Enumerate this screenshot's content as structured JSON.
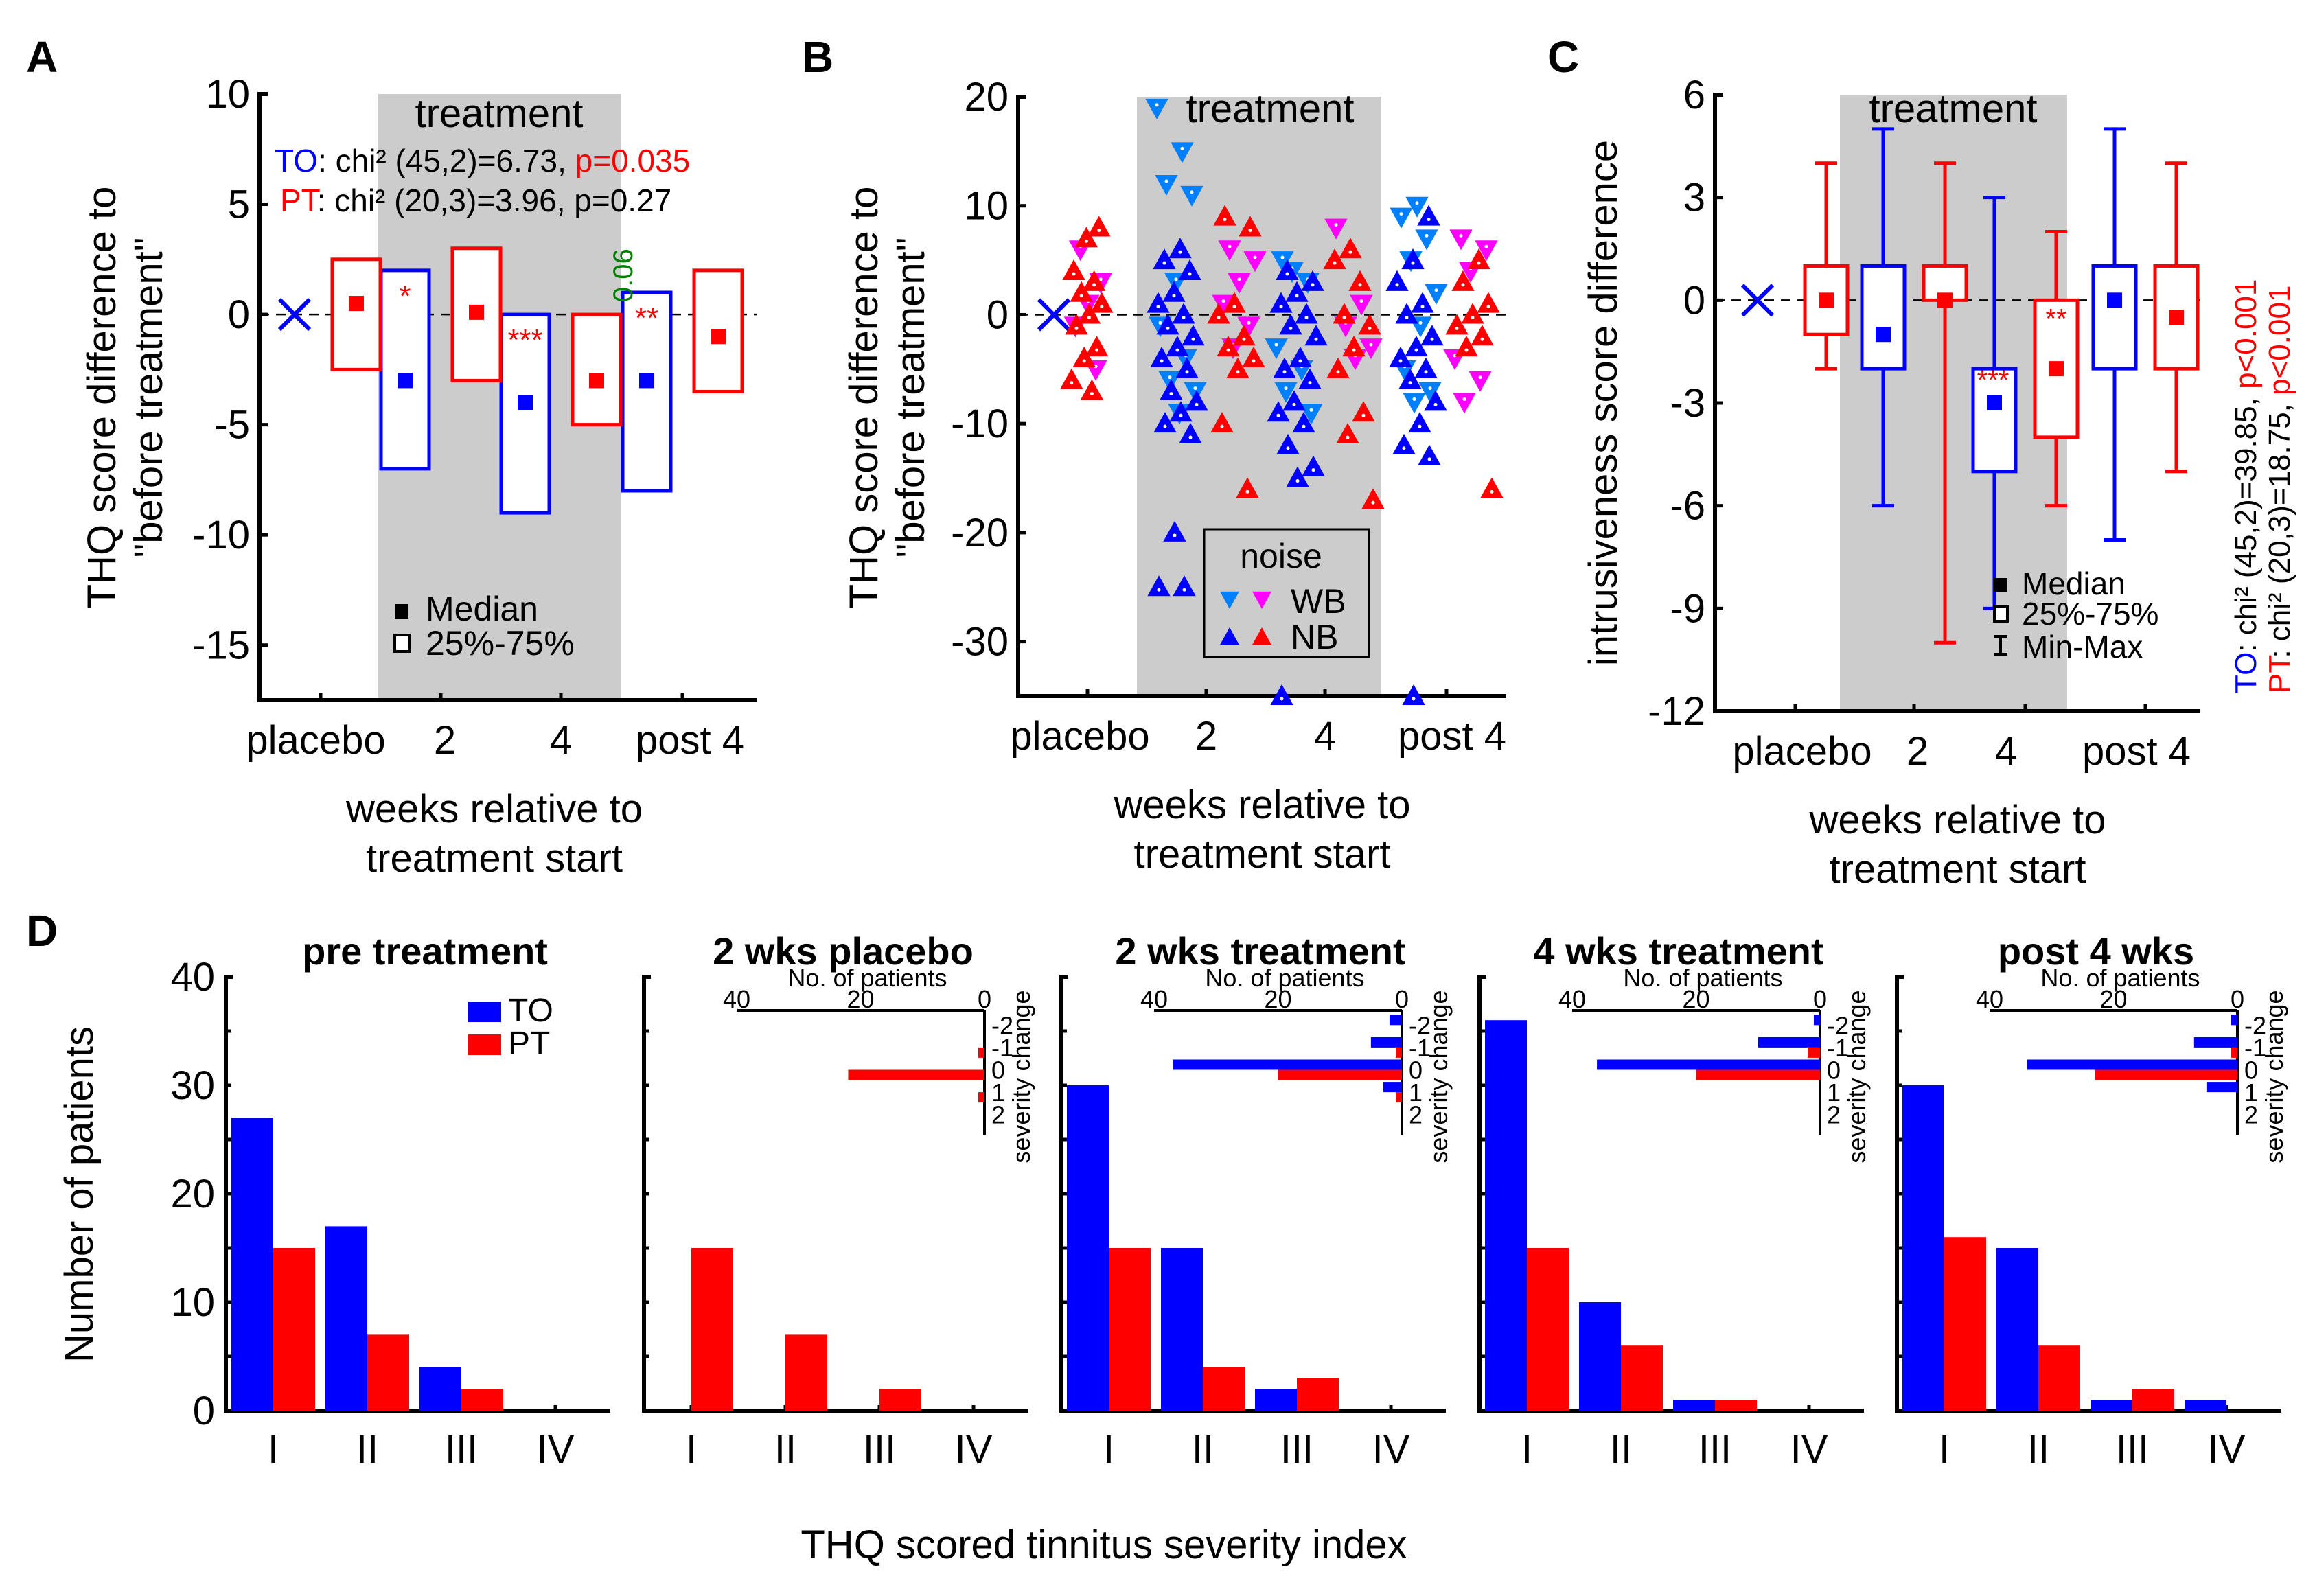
{
  "colors": {
    "to": "#0000ff",
    "pt": "#ff0000",
    "to_wb": "#0080ff",
    "pt_wb": "#ff00ff",
    "band": "#cccccc",
    "sig_green": "#008000"
  },
  "chart_data": [
    {
      "id": "A",
      "type": "box",
      "panel_label": "A",
      "ylabel_line1": "THQ score difference to",
      "ylabel_line2": "\"before treatment\"",
      "xlabel_line1": "weeks relative to",
      "xlabel_line2": "treatment start",
      "ylim": [
        -17.5,
        10
      ],
      "yticks": [
        10,
        5,
        0,
        -5,
        -10,
        -15
      ],
      "categories": [
        "placebo",
        "2",
        "4",
        "post 4"
      ],
      "band_label": "treatment",
      "band_range": [
        "between placebo and 2",
        "between 4 and post 4"
      ],
      "stats": {
        "to_label": "TO",
        "to_text": ": chi² (45,2)=6.73, ",
        "to_p": "p=0.035",
        "pt_label": "PT",
        "pt_text": ": chi² (20,3)=3.96, p=0.27"
      },
      "legend": {
        "median": "Median",
        "iqr": "25%-75%"
      },
      "series": [
        {
          "name": "TO",
          "color": "#0000ff",
          "boxes": [
            {
              "cat": "placebo",
              "marker": "X",
              "q1": null,
              "q3": null,
              "median": 0
            },
            {
              "cat": "2",
              "q1": -7,
              "q3": 2,
              "median": -3,
              "sig": "*"
            },
            {
              "cat": "4",
              "q1": -9,
              "q3": 0,
              "median": -4,
              "sig": "***"
            },
            {
              "cat": "post 4",
              "q1": -8,
              "q3": 1,
              "median": -3,
              "sig": "**"
            }
          ]
        },
        {
          "name": "PT",
          "color": "#ff0000",
          "boxes": [
            {
              "cat": "placebo",
              "q1": -2.5,
              "q3": 2.5,
              "median": 0.5
            },
            {
              "cat": "2",
              "q1": -3,
              "q3": 3,
              "median": 0.1
            },
            {
              "cat": "4",
              "q1": -5,
              "q3": 0,
              "median": -3,
              "sig": "0.06"
            },
            {
              "cat": "post 4",
              "q1": -3.5,
              "q3": 2,
              "median": -1
            }
          ]
        }
      ]
    },
    {
      "id": "B",
      "type": "scatter",
      "panel_label": "B",
      "ylabel_line1": "THQ score difference to",
      "ylabel_line2": "\"before treatment\"",
      "xlabel_line1": "weeks relative to",
      "xlabel_line2": "treatment start",
      "ylim": [
        -35,
        20
      ],
      "yticks": [
        20,
        10,
        0,
        -10,
        -20,
        -30
      ],
      "categories": [
        "placebo",
        "2",
        "4",
        "post 4"
      ],
      "band_label": "treatment",
      "legend": {
        "title": "noise",
        "wb": "WB",
        "nb": "NB"
      },
      "series": [
        {
          "name": "TO WB",
          "color": "#0080ff",
          "marker": "down-triangle",
          "points": [
            [
              "2",
              19
            ],
            [
              "2",
              15
            ],
            [
              "2",
              12
            ],
            [
              "2",
              11
            ],
            [
              "2",
              3
            ],
            [
              "2",
              -1
            ],
            [
              "2",
              -4
            ],
            [
              "2",
              -6
            ],
            [
              "2",
              -7
            ],
            [
              "2",
              -9
            ],
            [
              "4",
              5
            ],
            [
              "4",
              3
            ],
            [
              "4",
              4
            ],
            [
              "4",
              -3
            ],
            [
              "4",
              -5
            ],
            [
              "4",
              -7
            ],
            [
              "4",
              -9
            ],
            [
              "post 4",
              10
            ],
            [
              "post 4",
              9
            ],
            [
              "post 4",
              7
            ],
            [
              "post 4",
              5
            ],
            [
              "post 4",
              2
            ],
            [
              "post 4",
              -1
            ],
            [
              "post 4",
              -5
            ],
            [
              "post 4",
              -7
            ],
            [
              "post 4",
              -8
            ]
          ]
        },
        {
          "name": "PT WB",
          "color": "#ff00ff",
          "marker": "down-triangle",
          "points": [
            [
              "placebo",
              6
            ],
            [
              "placebo",
              3
            ],
            [
              "placebo",
              1
            ],
            [
              "placebo",
              -1
            ],
            [
              "placebo",
              -5
            ],
            [
              "2",
              6
            ],
            [
              "2",
              5
            ],
            [
              "2",
              3
            ],
            [
              "2",
              1
            ],
            [
              "2",
              -1
            ],
            [
              "2",
              -3
            ],
            [
              "4",
              8
            ],
            [
              "4",
              1
            ],
            [
              "4",
              -1
            ],
            [
              "4",
              -3
            ],
            [
              "4",
              -4
            ],
            [
              "post 4",
              7
            ],
            [
              "post 4",
              6
            ],
            [
              "post 4",
              4
            ],
            [
              "post 4",
              -4
            ],
            [
              "post 4",
              -6
            ],
            [
              "post 4",
              -8
            ]
          ]
        },
        {
          "name": "TO NB",
          "color": "#0000ff",
          "marker": "up-triangle",
          "points": [
            [
              "2",
              6
            ],
            [
              "2",
              5
            ],
            [
              "2",
              4
            ],
            [
              "2",
              2
            ],
            [
              "2",
              1
            ],
            [
              "2",
              0
            ],
            [
              "2",
              -1
            ],
            [
              "2",
              -2
            ],
            [
              "2",
              -3
            ],
            [
              "2",
              -4
            ],
            [
              "2",
              -5
            ],
            [
              "2",
              -7
            ],
            [
              "2",
              -8
            ],
            [
              "2",
              -9
            ],
            [
              "2",
              -10
            ],
            [
              "2",
              -11
            ],
            [
              "2",
              -20
            ],
            [
              "2",
              -25
            ],
            [
              "2",
              -25
            ],
            [
              "4",
              4
            ],
            [
              "4",
              3
            ],
            [
              "4",
              2
            ],
            [
              "4",
              1
            ],
            [
              "4",
              0
            ],
            [
              "4",
              -1
            ],
            [
              "4",
              -2
            ],
            [
              "4",
              -4
            ],
            [
              "4",
              -5
            ],
            [
              "4",
              -6
            ],
            [
              "4",
              -8
            ],
            [
              "4",
              -9
            ],
            [
              "4",
              -10
            ],
            [
              "4",
              -12
            ],
            [
              "4",
              -14
            ],
            [
              "4",
              -15
            ],
            [
              "4",
              -35
            ],
            [
              "post 4",
              9
            ],
            [
              "post 4",
              5
            ],
            [
              "post 4",
              3
            ],
            [
              "post 4",
              1
            ],
            [
              "post 4",
              0
            ],
            [
              "post 4",
              -2
            ],
            [
              "post 4",
              -3
            ],
            [
              "post 4",
              -4
            ],
            [
              "post 4",
              -5
            ],
            [
              "post 4",
              -6
            ],
            [
              "post 4",
              -8
            ],
            [
              "post 4",
              -10
            ],
            [
              "post 4",
              -12
            ],
            [
              "post 4",
              -13
            ],
            [
              "post 4",
              -35
            ]
          ]
        },
        {
          "name": "PT NB",
          "color": "#ff0000",
          "marker": "up-triangle",
          "points": [
            [
              "placebo",
              8
            ],
            [
              "placebo",
              7
            ],
            [
              "placebo",
              4
            ],
            [
              "placebo",
              3
            ],
            [
              "placebo",
              2
            ],
            [
              "placebo",
              1
            ],
            [
              "placebo",
              0
            ],
            [
              "placebo",
              -1
            ],
            [
              "placebo",
              -3
            ],
            [
              "placebo",
              -4
            ],
            [
              "placebo",
              -6
            ],
            [
              "placebo",
              -7
            ],
            [
              "2",
              9
            ],
            [
              "2",
              8
            ],
            [
              "2",
              1
            ],
            [
              "2",
              0
            ],
            [
              "2",
              -2
            ],
            [
              "2",
              -3
            ],
            [
              "2",
              -4
            ],
            [
              "2",
              -5
            ],
            [
              "2",
              -10
            ],
            [
              "2",
              -16
            ],
            [
              "4",
              6
            ],
            [
              "4",
              5
            ],
            [
              "4",
              3
            ],
            [
              "4",
              0
            ],
            [
              "4",
              -1
            ],
            [
              "4",
              -3
            ],
            [
              "4",
              -5
            ],
            [
              "4",
              -9
            ],
            [
              "4",
              -11
            ],
            [
              "4",
              -17
            ],
            [
              "post 4",
              5
            ],
            [
              "post 4",
              3
            ],
            [
              "post 4",
              1
            ],
            [
              "post 4",
              0
            ],
            [
              "post 4",
              -1
            ],
            [
              "post 4",
              -2
            ],
            [
              "post 4",
              -3
            ],
            [
              "post 4",
              -16
            ]
          ]
        }
      ]
    },
    {
      "id": "C",
      "type": "box",
      "panel_label": "C",
      "ylabel": "intrusiveness score difference",
      "xlabel_line1": "weeks relative to",
      "xlabel_line2": "treatment start",
      "ylim": [
        -12,
        6
      ],
      "yticks": [
        6,
        3,
        0,
        -3,
        -6,
        -9,
        -12
      ],
      "categories": [
        "placebo",
        "2",
        "4",
        "post 4"
      ],
      "band_label": "treatment",
      "legend": {
        "median": "Median",
        "iqr": "25%-75%",
        "range": "Min-Max"
      },
      "stats": {
        "to_label": "TO",
        "to_text": ": chi² (45,2)=39.85, ",
        "to_p": "p<0.001",
        "pt_label": "PT",
        "pt_text": ": chi² (20,3)=18.75, ",
        "pt_p": "p<0.001"
      },
      "series": [
        {
          "name": "TO",
          "color": "#0000ff",
          "boxes": [
            {
              "cat": "placebo",
              "marker": "X",
              "median": 0
            },
            {
              "cat": "2",
              "min": -6,
              "q1": -2,
              "median": -1,
              "q3": 1,
              "max": 5
            },
            {
              "cat": "4",
              "min": -9,
              "q1": -5,
              "median": -3,
              "q3": -2,
              "max": 3,
              "sig": "***"
            },
            {
              "cat": "post 4",
              "min": -7,
              "q1": -2,
              "median": 0,
              "q3": 1,
              "max": 5
            }
          ]
        },
        {
          "name": "PT",
          "color": "#ff0000",
          "boxes": [
            {
              "cat": "placebo",
              "min": -2,
              "q1": -1,
              "median": 0,
              "q3": 1,
              "max": 4
            },
            {
              "cat": "2",
              "min": -10,
              "q1": 0,
              "median": 0,
              "q3": 1,
              "max": 4
            },
            {
              "cat": "4",
              "min": -6,
              "q1": -4,
              "median": -2,
              "q3": 0,
              "max": 2,
              "sig": "**"
            },
            {
              "cat": "post 4",
              "min": -5,
              "q1": -2,
              "median": -0.5,
              "q3": 1,
              "max": 4
            }
          ]
        }
      ]
    },
    {
      "id": "D",
      "type": "bar",
      "panel_label": "D",
      "ylabel": "Number of patients",
      "xlabel": "THQ scored tinnitus severity index",
      "ylim": [
        0,
        40
      ],
      "yticks": [
        0,
        10,
        20,
        30,
        40
      ],
      "categories": [
        "I",
        "II",
        "III",
        "IV"
      ],
      "legend": [
        "TO",
        "PT"
      ],
      "inset": {
        "xlabel": "No. of patients",
        "xticks": [
          40,
          20,
          0
        ],
        "ylabel": "severity change",
        "yticks": [
          "-2",
          "-1",
          "0",
          "1",
          "2"
        ]
      },
      "subplots": [
        {
          "title": "pre treatment",
          "series": [
            {
              "name": "TO",
              "values": [
                27,
                17,
                4,
                0
              ]
            },
            {
              "name": "PT",
              "values": [
                15,
                7,
                2,
                0
              ]
            }
          ],
          "inset": null
        },
        {
          "title": "2 wks placebo",
          "series": [
            {
              "name": "TO",
              "values": [
                0,
                0,
                0,
                0
              ]
            },
            {
              "name": "PT",
              "values": [
                15,
                7,
                2,
                0
              ]
            }
          ],
          "inset": {
            "TO": [
              0,
              0,
              0,
              0,
              0
            ],
            "PT": [
              0,
              1,
              22,
              1,
              0
            ]
          }
        },
        {
          "title": "2 wks treatment",
          "series": [
            {
              "name": "TO",
              "values": [
                30,
                15,
                2,
                0
              ]
            },
            {
              "name": "PT",
              "values": [
                15,
                4,
                3,
                0
              ]
            }
          ],
          "inset": {
            "TO": [
              2,
              5,
              37,
              3,
              0
            ],
            "PT": [
              0,
              1,
              20,
              1,
              0
            ]
          }
        },
        {
          "title": "4 wks treatment",
          "series": [
            {
              "name": "TO",
              "values": [
                36,
                10,
                1,
                0
              ]
            },
            {
              "name": "PT",
              "values": [
                15,
                6,
                1,
                0
              ]
            }
          ],
          "inset": {
            "TO": [
              1,
              10,
              36,
              0,
              0
            ],
            "PT": [
              0,
              2,
              20,
              0,
              0
            ]
          }
        },
        {
          "title": "post 4 wks",
          "series": [
            {
              "name": "TO",
              "values": [
                30,
                15,
                1,
                1
              ]
            },
            {
              "name": "PT",
              "values": [
                16,
                6,
                2,
                0
              ]
            }
          ],
          "inset": {
            "TO": [
              1,
              7,
              34,
              5,
              0
            ],
            "PT": [
              0,
              1,
              23,
              0,
              0
            ]
          }
        }
      ]
    }
  ]
}
